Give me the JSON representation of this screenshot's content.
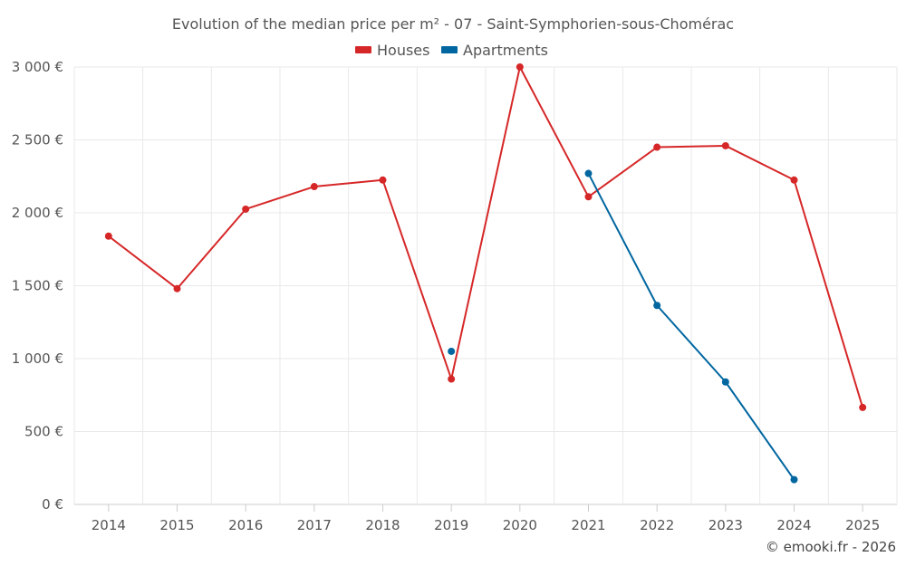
{
  "chart_data": {
    "type": "line",
    "title": "Evolution of the median price per m² - 07 - Saint-Symphorien-sous-Chomérac",
    "categories": [
      "2014",
      "2015",
      "2016",
      "2017",
      "2018",
      "2019",
      "2020",
      "2021",
      "2022",
      "2023",
      "2024",
      "2025"
    ],
    "ylim": [
      0,
      3000
    ],
    "y_ticks": [
      0,
      500,
      1000,
      1500,
      2000,
      2500,
      3000
    ],
    "y_tick_labels": [
      "0 €",
      "500 €",
      "1 000 €",
      "1 500 €",
      "2 000 €",
      "2 500 €",
      "3 000 €"
    ],
    "grid": true,
    "legend_position": "top-center",
    "series": [
      {
        "name": "Houses",
        "color": "#d62728",
        "values": [
          1840,
          1480,
          2025,
          2180,
          2225,
          860,
          3000,
          2110,
          2450,
          2460,
          2225,
          665
        ]
      },
      {
        "name": "Apartments",
        "color": "#0066a0",
        "values": [
          null,
          null,
          null,
          null,
          null,
          1050,
          null,
          2270,
          1365,
          840,
          170,
          null
        ]
      }
    ],
    "credit": "© emooki.fr - 2026"
  }
}
